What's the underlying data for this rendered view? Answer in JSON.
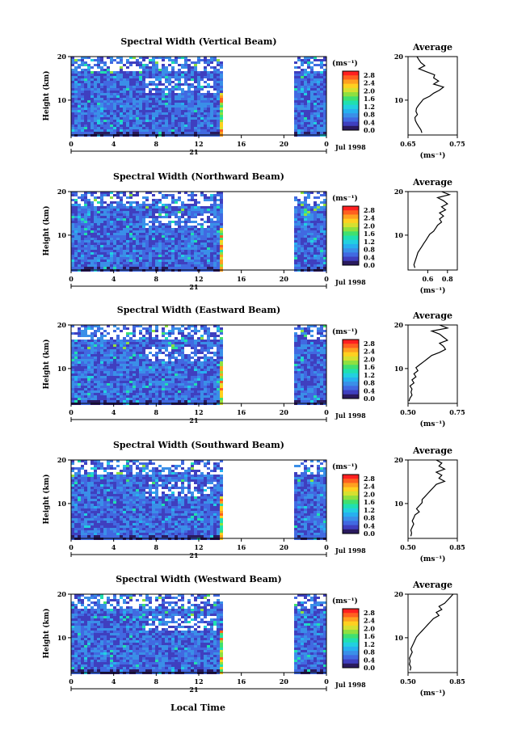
{
  "chart_data": {
    "type": "heatmap",
    "date_label": "Jul 1998",
    "day_label": "21",
    "xlabel": "Local Time",
    "ylabel": "Height (km)",
    "x_ticks": [
      "0",
      "4",
      "8",
      "12",
      "16",
      "20",
      "0"
    ],
    "y_ticks": [
      "20",
      "10"
    ],
    "xlim_hours": [
      0,
      24
    ],
    "ylim_km": [
      2,
      20
    ],
    "data_gap_hours": [
      14.3,
      20.8
    ],
    "colorbar": {
      "unit_label": "(ms⁻¹)",
      "tick_labels": [
        "2.8",
        "2.4",
        "2.0",
        "1.6",
        "1.2",
        "0.8",
        "0.4",
        "0.0"
      ],
      "range": [
        0.0,
        3.0
      ],
      "colors": [
        "#2a1a5e",
        "#3f3fbf",
        "#4169e1",
        "#3a8fe8",
        "#27b0ef",
        "#22d0e0",
        "#20e0b0",
        "#40e070",
        "#8ee040",
        "#d6e030",
        "#ffd020",
        "#ffa020",
        "#ff6020",
        "#ff2020"
      ]
    },
    "profile_title": "Average",
    "profile_unit": "(ms⁻¹)",
    "panels": [
      {
        "title": "Spectral Width (Vertical Beam)",
        "profile_xlim": [
          0.65,
          0.75
        ],
        "profile_ticks": [
          "0.65",
          "0.75"
        ],
        "profile": [
          [
            20,
            0.668
          ],
          [
            19.3,
            0.672
          ],
          [
            18.6,
            0.676
          ],
          [
            17.9,
            0.684
          ],
          [
            17.2,
            0.672
          ],
          [
            16.5,
            0.688
          ],
          [
            15.8,
            0.704
          ],
          [
            15.1,
            0.702
          ],
          [
            14.4,
            0.712
          ],
          [
            13.7,
            0.702
          ],
          [
            13.0,
            0.722
          ],
          [
            12.3,
            0.714
          ],
          [
            11.6,
            0.702
          ],
          [
            10.9,
            0.694
          ],
          [
            10.2,
            0.681
          ],
          [
            9.5,
            0.676
          ],
          [
            8.8,
            0.671
          ],
          [
            8.1,
            0.667
          ],
          [
            7.4,
            0.666
          ],
          [
            6.7,
            0.669
          ],
          [
            6.0,
            0.664
          ],
          [
            5.3,
            0.665
          ],
          [
            4.6,
            0.668
          ],
          [
            3.9,
            0.672
          ],
          [
            3.2,
            0.676
          ],
          [
            2.5,
            0.678
          ]
        ]
      },
      {
        "title": "Spectral Width (Northward Beam)",
        "profile_xlim": [
          0.4,
          0.9
        ],
        "profile_ticks": [
          "0.6",
          "0.8"
        ],
        "profile": [
          [
            20,
            0.74
          ],
          [
            19.3,
            0.82
          ],
          [
            18.6,
            0.7
          ],
          [
            17.9,
            0.76
          ],
          [
            17.2,
            0.8
          ],
          [
            16.5,
            0.74
          ],
          [
            15.8,
            0.78
          ],
          [
            15.1,
            0.72
          ],
          [
            14.4,
            0.76
          ],
          [
            13.7,
            0.72
          ],
          [
            13.0,
            0.74
          ],
          [
            12.3,
            0.7
          ],
          [
            11.6,
            0.68
          ],
          [
            10.9,
            0.66
          ],
          [
            10.2,
            0.62
          ],
          [
            9.5,
            0.6
          ],
          [
            8.8,
            0.58
          ],
          [
            8.1,
            0.56
          ],
          [
            7.4,
            0.54
          ],
          [
            6.7,
            0.52
          ],
          [
            6.0,
            0.5
          ],
          [
            5.3,
            0.49
          ],
          [
            4.6,
            0.48
          ],
          [
            3.9,
            0.47
          ],
          [
            3.2,
            0.46
          ],
          [
            2.5,
            0.47
          ]
        ]
      },
      {
        "title": "Spectral Width (Eastward Beam)",
        "profile_xlim": [
          0.5,
          0.75
        ],
        "profile_ticks": [
          "0.50",
          "0.75"
        ],
        "profile": [
          [
            20,
            0.66
          ],
          [
            19.3,
            0.7
          ],
          [
            18.6,
            0.62
          ],
          [
            17.9,
            0.66
          ],
          [
            17.2,
            0.68
          ],
          [
            16.5,
            0.7
          ],
          [
            15.8,
            0.66
          ],
          [
            15.1,
            0.68
          ],
          [
            14.4,
            0.69
          ],
          [
            13.7,
            0.66
          ],
          [
            13.0,
            0.62
          ],
          [
            12.3,
            0.6
          ],
          [
            11.6,
            0.58
          ],
          [
            10.9,
            0.56
          ],
          [
            10.2,
            0.54
          ],
          [
            9.5,
            0.55
          ],
          [
            8.8,
            0.53
          ],
          [
            8.1,
            0.54
          ],
          [
            7.4,
            0.52
          ],
          [
            6.7,
            0.53
          ],
          [
            6.0,
            0.51
          ],
          [
            5.3,
            0.52
          ],
          [
            4.6,
            0.515
          ],
          [
            3.9,
            0.52
          ],
          [
            3.2,
            0.51
          ],
          [
            2.5,
            0.505
          ]
        ]
      },
      {
        "title": "Spectral Width (Southward Beam)",
        "profile_xlim": [
          0.5,
          0.85
        ],
        "profile_ticks": [
          "0.50",
          "0.85"
        ],
        "profile": [
          [
            20,
            0.7
          ],
          [
            19.3,
            0.74
          ],
          [
            18.6,
            0.72
          ],
          [
            17.9,
            0.76
          ],
          [
            17.2,
            0.7
          ],
          [
            16.5,
            0.74
          ],
          [
            15.8,
            0.72
          ],
          [
            15.1,
            0.76
          ],
          [
            14.4,
            0.7
          ],
          [
            13.7,
            0.68
          ],
          [
            13.0,
            0.66
          ],
          [
            12.3,
            0.64
          ],
          [
            11.6,
            0.62
          ],
          [
            10.9,
            0.6
          ],
          [
            10.2,
            0.6
          ],
          [
            9.5,
            0.58
          ],
          [
            8.8,
            0.56
          ],
          [
            8.1,
            0.58
          ],
          [
            7.4,
            0.55
          ],
          [
            6.7,
            0.54
          ],
          [
            6.0,
            0.53
          ],
          [
            5.3,
            0.54
          ],
          [
            4.6,
            0.53
          ],
          [
            3.9,
            0.52
          ],
          [
            3.2,
            0.525
          ],
          [
            2.5,
            0.52
          ]
        ]
      },
      {
        "title": "Spectral Width (Westward Beam)",
        "profile_xlim": [
          0.5,
          0.85
        ],
        "profile_ticks": [
          "0.50",
          "0.85"
        ],
        "profile": [
          [
            20,
            0.82
          ],
          [
            19.3,
            0.8
          ],
          [
            18.6,
            0.78
          ],
          [
            17.9,
            0.76
          ],
          [
            17.2,
            0.72
          ],
          [
            16.5,
            0.74
          ],
          [
            15.8,
            0.7
          ],
          [
            15.1,
            0.72
          ],
          [
            14.4,
            0.68
          ],
          [
            13.7,
            0.66
          ],
          [
            13.0,
            0.64
          ],
          [
            12.3,
            0.62
          ],
          [
            11.6,
            0.6
          ],
          [
            10.9,
            0.58
          ],
          [
            10.2,
            0.56
          ],
          [
            9.5,
            0.55
          ],
          [
            8.8,
            0.54
          ],
          [
            8.1,
            0.53
          ],
          [
            7.4,
            0.52
          ],
          [
            6.7,
            0.53
          ],
          [
            6.0,
            0.52
          ],
          [
            5.3,
            0.51
          ],
          [
            4.6,
            0.515
          ],
          [
            3.9,
            0.51
          ],
          [
            3.2,
            0.52
          ],
          [
            2.5,
            0.515
          ]
        ]
      }
    ]
  }
}
